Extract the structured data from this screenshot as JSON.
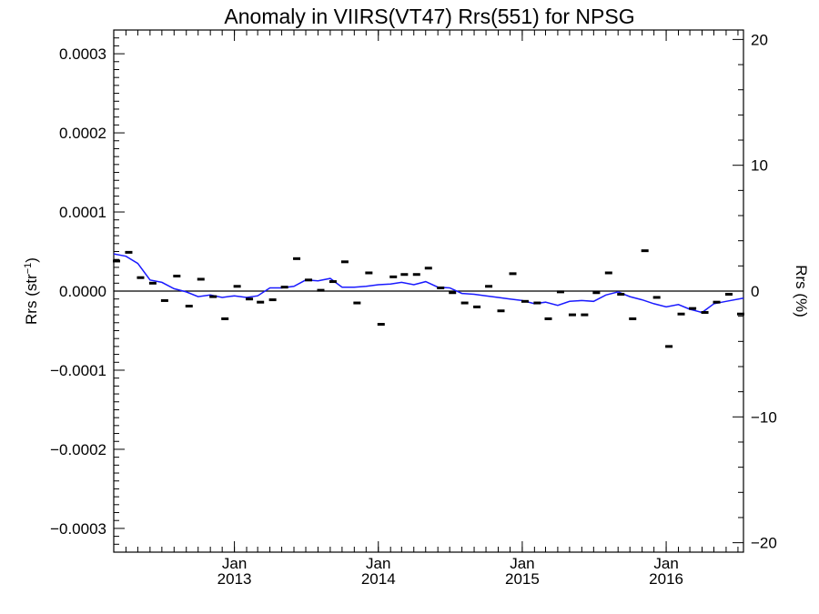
{
  "chart_data": {
    "type": "scatter",
    "title": "Anomaly in VIIRS(VT47) Rrs(551) for NPSG",
    "ylabel_left": "Rrs (str",
    "ylabel_left_sup": "−1",
    "ylabel_left_close": ")",
    "ylabel_right": "Rrs (%)",
    "x_axis": {
      "type": "date",
      "min": "2012-03-01",
      "max": "2016-07-15"
    },
    "ylim_left": [
      -0.00033,
      0.00033
    ],
    "ylim_right": [
      -20.75,
      20.75
    ],
    "left_ticks": [
      {
        "value": 0.0003,
        "label": "0.0003"
      },
      {
        "value": 0.0002,
        "label": "0.0002"
      },
      {
        "value": 0.0001,
        "label": "0.0001"
      },
      {
        "value": 0.0,
        "label": "0.0000"
      },
      {
        "value": -0.0001,
        "label": "−0.0001"
      },
      {
        "value": -0.0002,
        "label": "−0.0002"
      },
      {
        "value": -0.0003,
        "label": "−0.0003"
      }
    ],
    "right_ticks": [
      {
        "value": 20,
        "label": "20"
      },
      {
        "value": 10,
        "label": "10"
      },
      {
        "value": 0,
        "label": "0"
      },
      {
        "value": -10,
        "label": "−10"
      },
      {
        "value": -20,
        "label": "−20"
      }
    ],
    "x_ticks": [
      {
        "date": "2013-01-01",
        "month": "Jan",
        "year": "2013"
      },
      {
        "date": "2014-01-01",
        "month": "Jan",
        "year": "2014"
      },
      {
        "date": "2015-01-01",
        "month": "Jan",
        "year": "2015"
      },
      {
        "date": "2016-01-01",
        "month": "Jan",
        "year": "2016"
      }
    ],
    "series": [
      {
        "kind": "points",
        "color": "#000000",
        "points": [
          {
            "x": "2012-03-08",
            "y": 3.8e-05
          },
          {
            "x": "2012-04-08",
            "y": 4.9e-05
          },
          {
            "x": "2012-05-08",
            "y": 1.7e-05
          },
          {
            "x": "2012-06-08",
            "y": 1e-05
          },
          {
            "x": "2012-07-08",
            "y": -1.2e-05
          },
          {
            "x": "2012-08-08",
            "y": 1.9e-05
          },
          {
            "x": "2012-09-08",
            "y": -1.9e-05
          },
          {
            "x": "2012-10-08",
            "y": 1.5e-05
          },
          {
            "x": "2012-11-08",
            "y": -7e-06
          },
          {
            "x": "2012-12-08",
            "y": -3.5e-05
          },
          {
            "x": "2013-01-08",
            "y": 6e-06
          },
          {
            "x": "2013-02-08",
            "y": -1e-05
          },
          {
            "x": "2013-03-08",
            "y": -1.4e-05
          },
          {
            "x": "2013-04-08",
            "y": -1.1e-05
          },
          {
            "x": "2013-05-08",
            "y": 5e-06
          },
          {
            "x": "2013-06-08",
            "y": 4.1e-05
          },
          {
            "x": "2013-07-08",
            "y": 1.4e-05
          },
          {
            "x": "2013-08-08",
            "y": 1e-06
          },
          {
            "x": "2013-09-08",
            "y": 1.2e-05
          },
          {
            "x": "2013-10-08",
            "y": 3.7e-05
          },
          {
            "x": "2013-11-08",
            "y": -1.5e-05
          },
          {
            "x": "2013-12-08",
            "y": 2.3e-05
          },
          {
            "x": "2014-01-08",
            "y": -4.2e-05
          },
          {
            "x": "2014-02-08",
            "y": 1.8e-05
          },
          {
            "x": "2014-03-08",
            "y": 2.1e-05
          },
          {
            "x": "2014-04-08",
            "y": 2.1e-05
          },
          {
            "x": "2014-05-08",
            "y": 2.9e-05
          },
          {
            "x": "2014-06-08",
            "y": 4e-06
          },
          {
            "x": "2014-07-08",
            "y": -2e-06
          },
          {
            "x": "2014-08-08",
            "y": -1.5e-05
          },
          {
            "x": "2014-09-08",
            "y": -2e-05
          },
          {
            "x": "2014-10-08",
            "y": 6e-06
          },
          {
            "x": "2014-11-08",
            "y": -2.5e-05
          },
          {
            "x": "2014-12-08",
            "y": 2.2e-05
          },
          {
            "x": "2015-01-08",
            "y": -1.3e-05
          },
          {
            "x": "2015-02-08",
            "y": -1.5e-05
          },
          {
            "x": "2015-03-08",
            "y": -3.5e-05
          },
          {
            "x": "2015-04-08",
            "y": -1e-06
          },
          {
            "x": "2015-05-08",
            "y": -3e-05
          },
          {
            "x": "2015-06-08",
            "y": -3e-05
          },
          {
            "x": "2015-07-08",
            "y": -2e-06
          },
          {
            "x": "2015-08-08",
            "y": 2.3e-05
          },
          {
            "x": "2015-09-08",
            "y": -4e-06
          },
          {
            "x": "2015-10-08",
            "y": -3.5e-05
          },
          {
            "x": "2015-11-08",
            "y": 5.1e-05
          },
          {
            "x": "2015-12-08",
            "y": -8e-06
          },
          {
            "x": "2016-01-08",
            "y": -7e-05
          },
          {
            "x": "2016-02-08",
            "y": -2.9e-05
          },
          {
            "x": "2016-03-08",
            "y": -2.2e-05
          },
          {
            "x": "2016-04-08",
            "y": -2.7e-05
          },
          {
            "x": "2016-05-08",
            "y": -1.4e-05
          },
          {
            "x": "2016-06-08",
            "y": -4e-06
          },
          {
            "x": "2016-07-08",
            "y": -2.9e-05
          }
        ]
      },
      {
        "kind": "line",
        "color": "#1a1aff",
        "points": [
          {
            "x": "2012-03-01",
            "y": 4.7e-05
          },
          {
            "x": "2012-04-01",
            "y": 4.4e-05
          },
          {
            "x": "2012-05-01",
            "y": 3.5e-05
          },
          {
            "x": "2012-06-01",
            "y": 1.4e-05
          },
          {
            "x": "2012-07-01",
            "y": 1.1e-05
          },
          {
            "x": "2012-08-01",
            "y": 3e-06
          },
          {
            "x": "2012-09-01",
            "y": -1e-06
          },
          {
            "x": "2012-10-01",
            "y": -7e-06
          },
          {
            "x": "2012-11-01",
            "y": -5e-06
          },
          {
            "x": "2012-12-01",
            "y": -8e-06
          },
          {
            "x": "2013-01-01",
            "y": -6e-06
          },
          {
            "x": "2013-02-01",
            "y": -8e-06
          },
          {
            "x": "2013-03-01",
            "y": -6e-06
          },
          {
            "x": "2013-04-01",
            "y": 4e-06
          },
          {
            "x": "2013-05-01",
            "y": 4e-06
          },
          {
            "x": "2013-06-01",
            "y": 6e-06
          },
          {
            "x": "2013-07-01",
            "y": 1.4e-05
          },
          {
            "x": "2013-08-01",
            "y": 1.3e-05
          },
          {
            "x": "2013-09-01",
            "y": 1.6e-05
          },
          {
            "x": "2013-10-01",
            "y": 5e-06
          },
          {
            "x": "2013-11-01",
            "y": 5e-06
          },
          {
            "x": "2013-12-01",
            "y": 6e-06
          },
          {
            "x": "2014-01-01",
            "y": 8e-06
          },
          {
            "x": "2014-02-01",
            "y": 9e-06
          },
          {
            "x": "2014-03-01",
            "y": 1.1e-05
          },
          {
            "x": "2014-04-01",
            "y": 8e-06
          },
          {
            "x": "2014-05-01",
            "y": 1.2e-05
          },
          {
            "x": "2014-06-01",
            "y": 5e-06
          },
          {
            "x": "2014-07-01",
            "y": 4e-06
          },
          {
            "x": "2014-08-01",
            "y": -3e-06
          },
          {
            "x": "2014-09-01",
            "y": -4e-06
          },
          {
            "x": "2014-10-01",
            "y": -6e-06
          },
          {
            "x": "2014-11-01",
            "y": -8e-06
          },
          {
            "x": "2014-12-01",
            "y": -1e-05
          },
          {
            "x": "2015-01-01",
            "y": -1.2e-05
          },
          {
            "x": "2015-02-01",
            "y": -1.6e-05
          },
          {
            "x": "2015-03-01",
            "y": -1.4e-05
          },
          {
            "x": "2015-04-01",
            "y": -1.8e-05
          },
          {
            "x": "2015-05-01",
            "y": -1.3e-05
          },
          {
            "x": "2015-06-01",
            "y": -1.2e-05
          },
          {
            "x": "2015-07-01",
            "y": -1.3e-05
          },
          {
            "x": "2015-08-01",
            "y": -5e-06
          },
          {
            "x": "2015-09-01",
            "y": -1e-06
          },
          {
            "x": "2015-10-01",
            "y": -7e-06
          },
          {
            "x": "2015-11-01",
            "y": -1.1e-05
          },
          {
            "x": "2015-12-01",
            "y": -1.6e-05
          },
          {
            "x": "2016-01-01",
            "y": -2e-05
          },
          {
            "x": "2016-02-01",
            "y": -1.7e-05
          },
          {
            "x": "2016-03-01",
            "y": -2.3e-05
          },
          {
            "x": "2016-04-01",
            "y": -2.7e-05
          },
          {
            "x": "2016-05-01",
            "y": -1.6e-05
          },
          {
            "x": "2016-06-01",
            "y": -1.3e-05
          },
          {
            "x": "2016-07-15",
            "y": -9e-06
          }
        ]
      }
    ]
  }
}
